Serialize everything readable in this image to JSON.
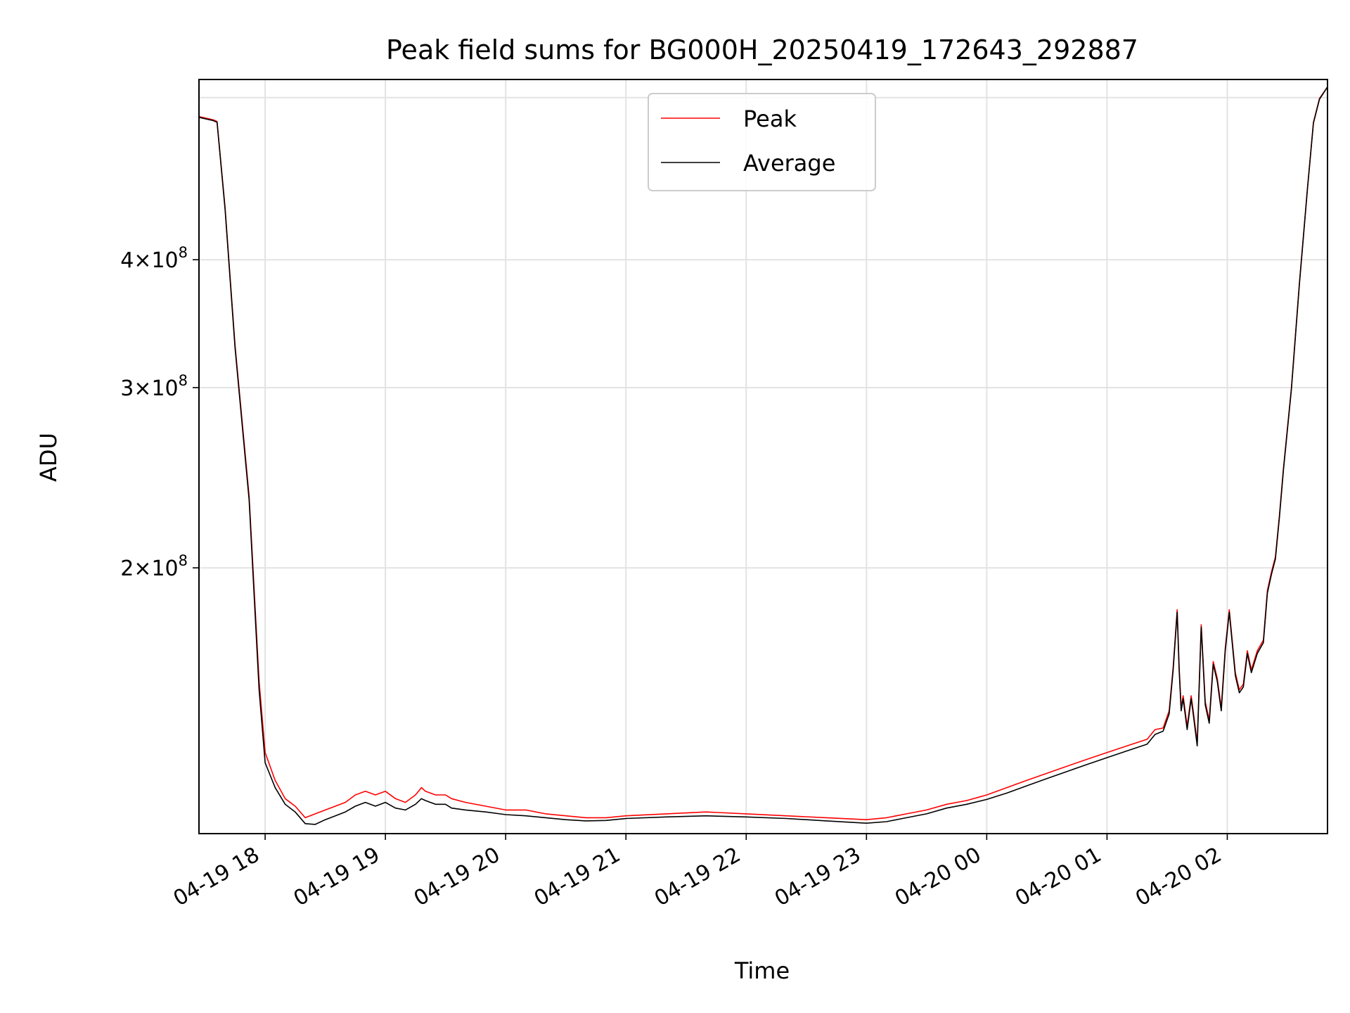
{
  "chart_data": {
    "type": "line",
    "title": "Peak field sums for BG000H_20250419_172643_292887",
    "xlabel": "Time",
    "ylabel": "ADU",
    "yscale": "log",
    "grid": true,
    "legend_position": "upper center",
    "xlim": [
      "2025-04-19 17:27",
      "2025-04-20 02:50"
    ],
    "ylim": [
      110000000,
      600000000
    ],
    "x_ticks": [
      {
        "value": "2025-04-19 18:00",
        "label": "04-19 18"
      },
      {
        "value": "2025-04-19 19:00",
        "label": "04-19 19"
      },
      {
        "value": "2025-04-19 20:00",
        "label": "04-19 20"
      },
      {
        "value": "2025-04-19 21:00",
        "label": "04-19 21"
      },
      {
        "value": "2025-04-19 22:00",
        "label": "04-19 22"
      },
      {
        "value": "2025-04-19 23:00",
        "label": "04-19 23"
      },
      {
        "value": "2025-04-20 00:00",
        "label": "04-20 00"
      },
      {
        "value": "2025-04-20 01:00",
        "label": "04-20 01"
      },
      {
        "value": "2025-04-20 02:00",
        "label": "04-20 02"
      }
    ],
    "y_ticks": [
      {
        "value": 200000000,
        "label_mantissa": "2",
        "label_base": "10",
        "label_exponent": "8"
      },
      {
        "value": 300000000,
        "label_mantissa": "3",
        "label_base": "10",
        "label_exponent": "8"
      },
      {
        "value": 400000000,
        "label_mantissa": "4",
        "label_base": "10",
        "label_exponent": "8"
      }
    ],
    "series": [
      {
        "name": "Peak",
        "color": "#ff0000",
        "x": [
          "2025-04-19 17:27",
          "2025-04-19 17:34",
          "2025-04-19 17:36",
          "2025-04-19 17:40",
          "2025-04-19 17:45",
          "2025-04-19 17:52",
          "2025-04-19 17:57",
          "2025-04-19 18:00",
          "2025-04-19 18:05",
          "2025-04-19 18:10",
          "2025-04-19 18:15",
          "2025-04-19 18:20",
          "2025-04-19 18:25",
          "2025-04-19 18:30",
          "2025-04-19 18:35",
          "2025-04-19 18:40",
          "2025-04-19 18:45",
          "2025-04-19 18:50",
          "2025-04-19 18:55",
          "2025-04-19 19:00",
          "2025-04-19 19:05",
          "2025-04-19 19:10",
          "2025-04-19 19:15",
          "2025-04-19 19:18",
          "2025-04-19 19:20",
          "2025-04-19 19:25",
          "2025-04-19 19:30",
          "2025-04-19 19:33",
          "2025-04-19 19:40",
          "2025-04-19 19:50",
          "2025-04-19 20:00",
          "2025-04-19 20:10",
          "2025-04-19 20:20",
          "2025-04-19 20:30",
          "2025-04-19 20:40",
          "2025-04-19 20:50",
          "2025-04-19 21:00",
          "2025-04-19 21:20",
          "2025-04-19 21:40",
          "2025-04-19 22:00",
          "2025-04-19 22:20",
          "2025-04-19 22:40",
          "2025-04-19 23:00",
          "2025-04-19 23:10",
          "2025-04-19 23:20",
          "2025-04-19 23:30",
          "2025-04-19 23:40",
          "2025-04-19 23:50",
          "2025-04-20 00:00",
          "2025-04-20 00:10",
          "2025-04-20 00:20",
          "2025-04-20 00:30",
          "2025-04-20 00:40",
          "2025-04-20 00:50",
          "2025-04-20 01:00",
          "2025-04-20 01:10",
          "2025-04-20 01:20",
          "2025-04-20 01:24",
          "2025-04-20 01:28",
          "2025-04-20 01:31",
          "2025-04-20 01:33",
          "2025-04-20 01:35",
          "2025-04-20 01:36",
          "2025-04-20 01:37",
          "2025-04-20 01:38",
          "2025-04-20 01:40",
          "2025-04-20 01:42",
          "2025-04-20 01:43",
          "2025-04-20 01:45",
          "2025-04-20 01:47",
          "2025-04-20 01:49",
          "2025-04-20 01:51",
          "2025-04-20 01:53",
          "2025-04-20 01:55",
          "2025-04-20 01:57",
          "2025-04-20 01:59",
          "2025-04-20 02:01",
          "2025-04-20 02:04",
          "2025-04-20 02:06",
          "2025-04-20 02:08",
          "2025-04-20 02:10",
          "2025-04-20 02:12",
          "2025-04-20 02:15",
          "2025-04-20 02:18",
          "2025-04-20 02:20",
          "2025-04-20 02:22",
          "2025-04-20 02:24",
          "2025-04-20 02:26",
          "2025-04-20 02:28",
          "2025-04-20 02:32",
          "2025-04-20 02:36",
          "2025-04-20 02:40",
          "2025-04-20 02:43",
          "2025-04-20 02:46",
          "2025-04-20 02:50"
        ],
        "y": [
          552000000,
          548000000,
          546000000,
          450000000,
          330000000,
          235000000,
          155000000,
          132000000,
          124000000,
          119000000,
          117000000,
          114000000,
          115000000,
          116000000,
          117000000,
          118000000,
          120000000,
          121000000,
          120000000,
          121000000,
          119000000,
          118000000,
          120000000,
          122000000,
          121000000,
          120000000,
          120000000,
          119000000,
          118000000,
          117000000,
          116000000,
          116000000,
          115000000,
          114500000,
          114000000,
          114000000,
          114500000,
          115000000,
          115500000,
          115000000,
          114500000,
          114000000,
          113500000,
          114000000,
          115000000,
          116000000,
          117500000,
          118500000,
          120000000,
          122000000,
          124000000,
          126000000,
          128000000,
          130000000,
          132000000,
          134000000,
          136000000,
          139000000,
          139500000,
          145000000,
          160000000,
          182000000,
          160000000,
          146000000,
          150000000,
          140000000,
          150000000,
          145000000,
          135000000,
          176000000,
          148000000,
          142000000,
          162000000,
          156000000,
          146000000,
          167000000,
          182000000,
          158000000,
          152000000,
          154000000,
          166000000,
          159000000,
          166000000,
          170000000,
          190000000,
          198000000,
          205000000,
          225000000,
          250000000,
          300000000,
          380000000,
          470000000,
          545000000,
          575000000,
          590000000
        ]
      },
      {
        "name": "Average",
        "color": "#000000",
        "x": [
          "2025-04-19 17:27",
          "2025-04-19 17:34",
          "2025-04-19 17:36",
          "2025-04-19 17:40",
          "2025-04-19 17:45",
          "2025-04-19 17:52",
          "2025-04-19 17:57",
          "2025-04-19 18:00",
          "2025-04-19 18:05",
          "2025-04-19 18:10",
          "2025-04-19 18:15",
          "2025-04-19 18:20",
          "2025-04-19 18:25",
          "2025-04-19 18:30",
          "2025-04-19 18:35",
          "2025-04-19 18:40",
          "2025-04-19 18:45",
          "2025-04-19 18:50",
          "2025-04-19 18:55",
          "2025-04-19 19:00",
          "2025-04-19 19:05",
          "2025-04-19 19:10",
          "2025-04-19 19:15",
          "2025-04-19 19:18",
          "2025-04-19 19:20",
          "2025-04-19 19:25",
          "2025-04-19 19:30",
          "2025-04-19 19:33",
          "2025-04-19 19:40",
          "2025-04-19 19:50",
          "2025-04-19 20:00",
          "2025-04-19 20:10",
          "2025-04-19 20:20",
          "2025-04-19 20:30",
          "2025-04-19 20:40",
          "2025-04-19 20:50",
          "2025-04-19 21:00",
          "2025-04-19 21:20",
          "2025-04-19 21:40",
          "2025-04-19 22:00",
          "2025-04-19 22:20",
          "2025-04-19 22:40",
          "2025-04-19 23:00",
          "2025-04-19 23:10",
          "2025-04-19 23:20",
          "2025-04-19 23:30",
          "2025-04-19 23:40",
          "2025-04-19 23:50",
          "2025-04-20 00:00",
          "2025-04-20 00:10",
          "2025-04-20 00:20",
          "2025-04-20 00:30",
          "2025-04-20 00:40",
          "2025-04-20 00:50",
          "2025-04-20 01:00",
          "2025-04-20 01:10",
          "2025-04-20 01:20",
          "2025-04-20 01:24",
          "2025-04-20 01:28",
          "2025-04-20 01:31",
          "2025-04-20 01:33",
          "2025-04-20 01:35",
          "2025-04-20 01:36",
          "2025-04-20 01:37",
          "2025-04-20 01:38",
          "2025-04-20 01:40",
          "2025-04-20 01:42",
          "2025-04-20 01:43",
          "2025-04-20 01:45",
          "2025-04-20 01:47",
          "2025-04-20 01:49",
          "2025-04-20 01:51",
          "2025-04-20 01:53",
          "2025-04-20 01:55",
          "2025-04-20 01:57",
          "2025-04-20 01:59",
          "2025-04-20 02:01",
          "2025-04-20 02:04",
          "2025-04-20 02:06",
          "2025-04-20 02:08",
          "2025-04-20 02:10",
          "2025-04-20 02:12",
          "2025-04-20 02:15",
          "2025-04-20 02:18",
          "2025-04-20 02:20",
          "2025-04-20 02:22",
          "2025-04-20 02:24",
          "2025-04-20 02:26",
          "2025-04-20 02:28",
          "2025-04-20 02:32",
          "2025-04-20 02:36",
          "2025-04-20 02:40",
          "2025-04-20 02:43",
          "2025-04-20 02:46",
          "2025-04-20 02:50"
        ],
        "y": [
          551000000,
          547000000,
          545000000,
          448000000,
          328000000,
          233000000,
          152000000,
          129000000,
          122000000,
          117500000,
          115500000,
          112500000,
          112300000,
          113500000,
          114500000,
          115500000,
          117000000,
          118000000,
          117000000,
          118000000,
          116500000,
          116000000,
          117500000,
          119000000,
          118500000,
          117500000,
          117500000,
          116500000,
          116000000,
          115500000,
          114800000,
          114500000,
          114000000,
          113500000,
          113200000,
          113300000,
          113800000,
          114200000,
          114500000,
          114200000,
          113800000,
          113200000,
          112600000,
          113000000,
          114000000,
          115000000,
          116500000,
          117500000,
          118800000,
          120500000,
          122500000,
          124500000,
          126500000,
          128500000,
          130500000,
          132500000,
          134500000,
          137500000,
          138500000,
          144000000,
          159000000,
          181000000,
          159000000,
          145000000,
          149000000,
          139000000,
          149000000,
          144000000,
          134000000,
          175000000,
          147000000,
          141000000,
          161000000,
          155000000,
          145000000,
          166000000,
          181000000,
          157000000,
          151000000,
          153000000,
          165000000,
          158000000,
          165000000,
          169000000,
          189000000,
          197000000,
          204000000,
          224000000,
          249000000,
          299000000,
          379000000,
          469000000,
          544000000,
          574000000,
          590000000
        ]
      }
    ]
  }
}
